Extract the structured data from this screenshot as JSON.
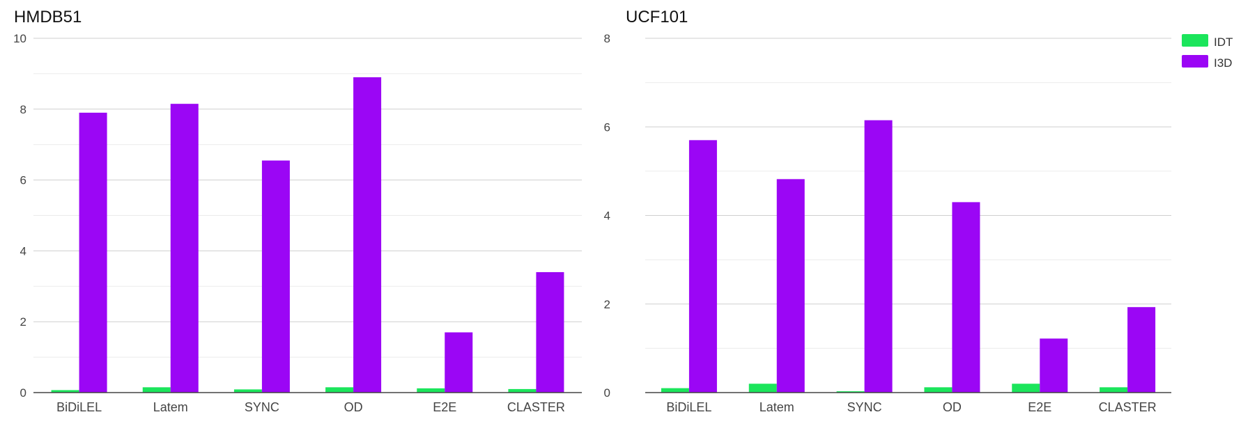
{
  "colors": {
    "IDT": "#1BE55B",
    "I3D": "#9B06F5",
    "gridline_major": "#cfcfcf",
    "gridline_minor": "#ebebeb",
    "axis": "#444444",
    "tick_text": "#444444",
    "title_text": "#111111"
  },
  "legend": {
    "placement": "top-right",
    "items": [
      "IDT",
      "I3D"
    ]
  },
  "chart_data": [
    {
      "type": "bar",
      "title": "HMDB51",
      "categories": [
        "BiDiLEL",
        "Latem",
        "SYNC",
        "OD",
        "E2E",
        "CLASTER"
      ],
      "series": [
        {
          "name": "IDT",
          "values": [
            0.07,
            0.15,
            0.09,
            0.15,
            0.12,
            0.1
          ]
        },
        {
          "name": "I3D",
          "values": [
            7.9,
            8.15,
            6.55,
            8.9,
            1.7,
            3.4
          ]
        }
      ],
      "ylim": [
        0,
        10
      ],
      "yticks": [
        "0",
        "2",
        "4",
        "6",
        "8",
        "10"
      ],
      "grid": true,
      "xlabel": "",
      "ylabel": ""
    },
    {
      "type": "bar",
      "title": "UCF101",
      "categories": [
        "BiDiLEL",
        "Latem",
        "SYNC",
        "OD",
        "E2E",
        "CLASTER"
      ],
      "series": [
        {
          "name": "IDT",
          "values": [
            0.1,
            0.2,
            0.03,
            0.12,
            0.2,
            0.12
          ]
        },
        {
          "name": "I3D",
          "values": [
            5.7,
            4.82,
            6.15,
            4.3,
            1.22,
            1.93
          ]
        }
      ],
      "ylim": [
        0,
        8
      ],
      "yticks": [
        "0",
        "2",
        "4",
        "6",
        "8"
      ],
      "grid": true,
      "xlabel": "",
      "ylabel": ""
    }
  ]
}
